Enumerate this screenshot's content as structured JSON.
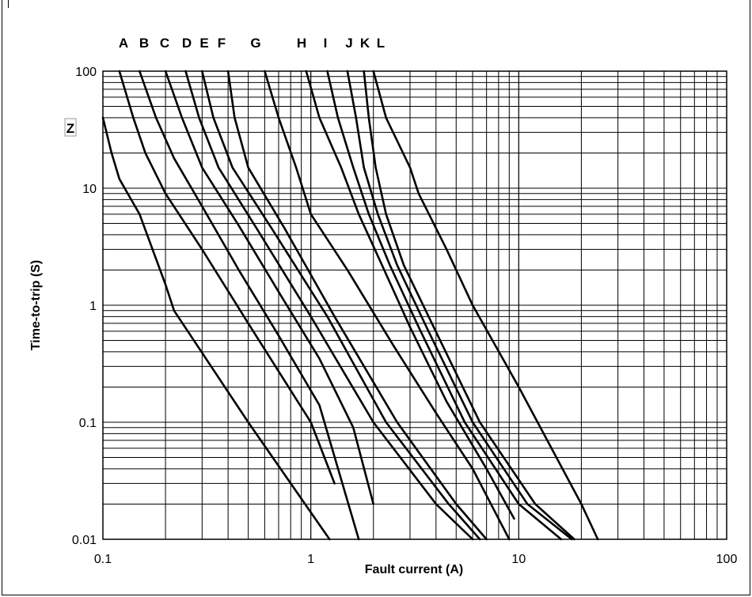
{
  "chart_data": {
    "type": "line",
    "title": "",
    "xlabel": "Fault current (A)",
    "ylabel": "Time-to-trip (S)",
    "x_scale": "log",
    "y_scale": "log",
    "xlim": [
      0.1,
      100
    ],
    "ylim": [
      0.01,
      100
    ],
    "grid": true,
    "x_ticks": [
      "0.1",
      "1",
      "10",
      "100"
    ],
    "y_ticks": [
      "0.01",
      "0.1",
      "1",
      "10",
      "100"
    ],
    "series_labels_top": [
      "A",
      "B",
      "C",
      "D",
      "E",
      "F",
      "G",
      "H",
      "I",
      "J",
      "K",
      "L"
    ],
    "extra_label": "Z",
    "series": [
      {
        "name": "Z",
        "points": [
          [
            0.1,
            40
          ],
          [
            0.11,
            20
          ],
          [
            0.12,
            12
          ],
          [
            0.15,
            6
          ],
          [
            0.2,
            1.5
          ],
          [
            0.22,
            0.9
          ],
          [
            0.5,
            0.1
          ],
          [
            1.23,
            0.01
          ]
        ]
      },
      {
        "name": "A",
        "points": [
          [
            0.12,
            100
          ],
          [
            0.14,
            40
          ],
          [
            0.16,
            20
          ],
          [
            0.2,
            9
          ],
          [
            0.3,
            3
          ],
          [
            0.5,
            0.7
          ],
          [
            1.0,
            0.1
          ],
          [
            1.3,
            0.03
          ]
        ]
      },
      {
        "name": "B",
        "points": [
          [
            0.15,
            100
          ],
          [
            0.18,
            40
          ],
          [
            0.22,
            18
          ],
          [
            0.3,
            7
          ],
          [
            0.45,
            2
          ],
          [
            0.7,
            0.55
          ],
          [
            1.1,
            0.14
          ],
          [
            1.7,
            0.01
          ]
        ]
      },
      {
        "name": "C",
        "points": [
          [
            0.2,
            100
          ],
          [
            0.24,
            40
          ],
          [
            0.3,
            15
          ],
          [
            0.45,
            4.8
          ],
          [
            0.7,
            1.3
          ],
          [
            1.1,
            0.35
          ],
          [
            1.6,
            0.09
          ],
          [
            2.0,
            0.02
          ]
        ]
      },
      {
        "name": "D",
        "points": [
          [
            0.25,
            100
          ],
          [
            0.29,
            40
          ],
          [
            0.36,
            15
          ],
          [
            0.55,
            4.5
          ],
          [
            1.0,
            0.8
          ],
          [
            2.0,
            0.1
          ],
          [
            4.0,
            0.02
          ],
          [
            6.0,
            0.01
          ]
        ]
      },
      {
        "name": "E",
        "points": [
          [
            0.3,
            100
          ],
          [
            0.34,
            40
          ],
          [
            0.42,
            15
          ],
          [
            0.65,
            4.5
          ],
          [
            1.2,
            0.8
          ],
          [
            2.3,
            0.1
          ],
          [
            4.6,
            0.02
          ],
          [
            6.5,
            0.01
          ]
        ]
      },
      {
        "name": "F",
        "points": [
          [
            0.4,
            100
          ],
          [
            0.43,
            40
          ],
          [
            0.5,
            15
          ],
          [
            0.75,
            4.5
          ],
          [
            1.3,
            0.8
          ],
          [
            2.6,
            0.1
          ],
          [
            5.0,
            0.02
          ],
          [
            7.0,
            0.01
          ]
        ]
      },
      {
        "name": "G",
        "points": [
          [
            0.6,
            100
          ],
          [
            0.7,
            40
          ],
          [
            0.85,
            15
          ],
          [
            1.0,
            6
          ],
          [
            1.5,
            2
          ],
          [
            2.5,
            0.45
          ],
          [
            4.0,
            0.12
          ],
          [
            6.0,
            0.04
          ],
          [
            9.0,
            0.01
          ]
        ]
      },
      {
        "name": "H",
        "points": [
          [
            0.95,
            100
          ],
          [
            1.1,
            40
          ],
          [
            1.4,
            15
          ],
          [
            1.7,
            6
          ],
          [
            2.2,
            2.2
          ],
          [
            3.0,
            0.65
          ],
          [
            4.5,
            0.15
          ],
          [
            7.0,
            0.04
          ],
          [
            9.5,
            0.015
          ]
        ]
      },
      {
        "name": "I",
        "points": [
          [
            1.2,
            100
          ],
          [
            1.35,
            40
          ],
          [
            1.6,
            15
          ],
          [
            1.9,
            6
          ],
          [
            2.4,
            2.2
          ],
          [
            3.3,
            0.65
          ],
          [
            5.5,
            0.1
          ],
          [
            10.0,
            0.02
          ],
          [
            16.0,
            0.01
          ]
        ]
      },
      {
        "name": "J",
        "points": [
          [
            1.5,
            100
          ],
          [
            1.65,
            40
          ],
          [
            1.8,
            15
          ],
          [
            2.1,
            6
          ],
          [
            2.6,
            2.2
          ],
          [
            3.6,
            0.65
          ],
          [
            6.0,
            0.1
          ],
          [
            11.0,
            0.02
          ],
          [
            18.0,
            0.01
          ]
        ]
      },
      {
        "name": "K",
        "points": [
          [
            1.8,
            100
          ],
          [
            1.9,
            40
          ],
          [
            2.05,
            15
          ],
          [
            2.3,
            6
          ],
          [
            2.8,
            2.2
          ],
          [
            3.9,
            0.65
          ],
          [
            6.5,
            0.1
          ],
          [
            12.0,
            0.02
          ],
          [
            18.5,
            0.01
          ]
        ]
      },
      {
        "name": "L",
        "points": [
          [
            2.0,
            100
          ],
          [
            2.3,
            40
          ],
          [
            3.0,
            15
          ],
          [
            3.3,
            9
          ],
          [
            4.5,
            3
          ],
          [
            6.0,
            1
          ],
          [
            10.0,
            0.2
          ],
          [
            20.0,
            0.02
          ],
          [
            24.0,
            0.01
          ]
        ]
      }
    ]
  }
}
